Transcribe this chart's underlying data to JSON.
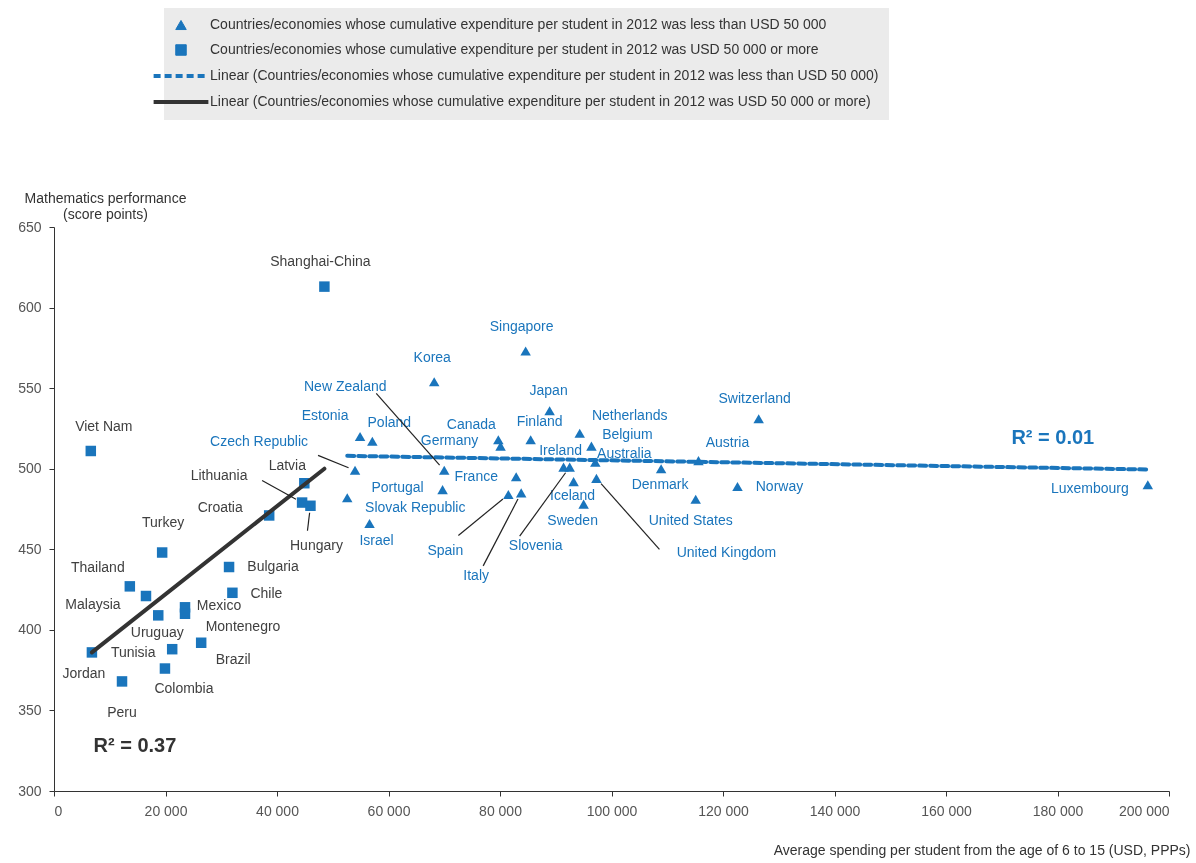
{
  "chart_data": {
    "type": "scatter",
    "xlabel": "Average spending per student from the age of 6 to 15 (USD, PPPs)",
    "ylabel": "Mathematics performance\n(score points)",
    "xlim": [
      0,
      200000
    ],
    "ylim": [
      300,
      650
    ],
    "xticks": [
      0,
      {
        "value": 20000,
        "label": "20 000"
      },
      {
        "value": 40000,
        "label": "40 000"
      },
      {
        "value": 60000,
        "label": "60 000"
      },
      {
        "value": 80000,
        "label": "80 000"
      },
      {
        "value": 100000,
        "label": "100 000"
      },
      {
        "value": 120000,
        "label": "120 000"
      },
      {
        "value": 140000,
        "label": "140 000"
      },
      {
        "value": 160000,
        "label": "160 000"
      },
      {
        "value": 180000,
        "label": "180 000"
      },
      {
        "value": 200000,
        "label": "200 000"
      }
    ],
    "yticks": [
      300,
      350,
      400,
      450,
      500,
      550,
      600,
      650
    ],
    "legend": "top",
    "grid": false,
    "series": [
      {
        "name": "Countries/economies whose cumulative expenditure per student in 2012 was less than USD 50 000",
        "color": "#1a75bc",
        "marker": "triangle",
        "x": [
          84600,
          68200,
          88900,
          54900,
          57100,
          54000,
          70000,
          69700,
          52600,
          56600,
          79700,
          80100,
          85500,
          82900,
          81500,
          83800,
          91400,
          92500,
          97100,
          94300,
          96400,
          93200,
          97300,
          95000,
          108900,
          115100,
          115600,
          126400,
          122600,
          196200
        ],
        "values": [
          573,
          554,
          536,
          520,
          517,
          499,
          499,
          487,
          482,
          466,
          518,
          514,
          518,
          495,
          484,
          485,
          501,
          501,
          504,
          522,
          514,
          492,
          494,
          478,
          500,
          481,
          505,
          531,
          489,
          490
        ],
        "value_labels": [
          "Singapore",
          "Korea",
          "Japan",
          "Estonia",
          "Poland",
          "Czech Republic",
          "New Zealand",
          "Portugal",
          "Slovak Republic",
          "Israel",
          "Canada",
          "Germany",
          "Finland",
          "France",
          "Spain",
          "Italy",
          "Ireland",
          "Slovenia",
          "Australia",
          "Netherlands",
          "Belgium",
          "Iceland",
          "United Kingdom",
          "Sweden",
          "Denmark",
          "United States",
          "Austria",
          "Switzerland",
          "Norway",
          "Luxembourg"
        ]
      },
      {
        "name": "Countries/economies whose cumulative expenditure per student in 2012 was USD 50 000 or more",
        "color": "#1a75bc",
        "marker": "square",
        "x": [
          6600,
          48500,
          44900,
          44500,
          46000,
          38600,
          19400,
          31400,
          32000,
          13600,
          16500,
          18700,
          23500,
          23500,
          26400,
          21200,
          19900,
          6800,
          12200
        ],
        "values": [
          511,
          613,
          491,
          479,
          477,
          471,
          448,
          439,
          423,
          427,
          421,
          409,
          414,
          410,
          392,
          388,
          376,
          386,
          368
        ],
        "value_labels": [
          "Viet Nam",
          "Shanghai-China",
          "Latvia",
          "Lithuania",
          "Hungary",
          "Croatia",
          "Turkey",
          "Bulgaria",
          "Chile",
          "Thailand",
          "Malaysia",
          "Uruguay",
          "Mexico",
          "Montenegro",
          "Brazil",
          "Tunisia",
          "Colombia",
          "Jordan",
          "Peru"
        ]
      },
      {
        "name": "Linear (Countries/economies whose cumulative expenditure per student in 2012 was less than USD 50 000)",
        "type": "line",
        "color": "#1a75bc",
        "line_style": "dashed",
        "x": [
          52600,
          196200
        ],
        "values": [
          508,
          499.5
        ]
      },
      {
        "name": "Linear (Countries/economies whose cumulative expenditure per student in 2012 was USD 50 000 or more)",
        "type": "line",
        "color": "#333333",
        "line_style": "solid",
        "x": [
          6800,
          48500
        ],
        "values": [
          386,
          500
        ]
      }
    ],
    "annotations": [
      "R² = 0.01",
      "R² = 0.37"
    ]
  }
}
